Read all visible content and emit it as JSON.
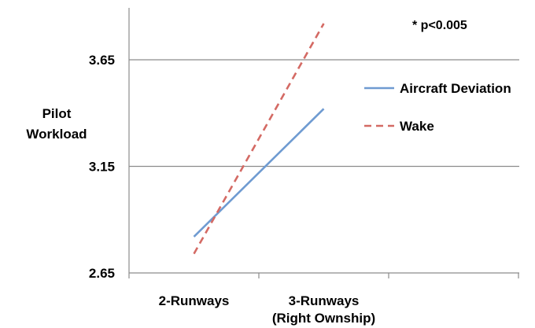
{
  "chart_data": {
    "type": "line",
    "title": "",
    "annotation": "* p<0.005",
    "ylabel": [
      "Pilot",
      "Workload"
    ],
    "xlabel": "",
    "categories": [
      [
        "2-Runways"
      ],
      [
        "3-Runways",
        "(Right Ownship)"
      ]
    ],
    "yticks": [
      "2.65",
      "3.15",
      "3.65"
    ],
    "ylim": [
      2.65,
      3.9
    ],
    "grid": true,
    "legend_position": "right",
    "series": [
      {
        "name": "Aircraft Deviation",
        "values": [
          2.82,
          3.42
        ],
        "color": "#6f9bd1",
        "style": "solid"
      },
      {
        "name": "Wake",
        "values": [
          2.74,
          3.82
        ],
        "color": "#d46a64",
        "style": "dashed"
      }
    ]
  }
}
